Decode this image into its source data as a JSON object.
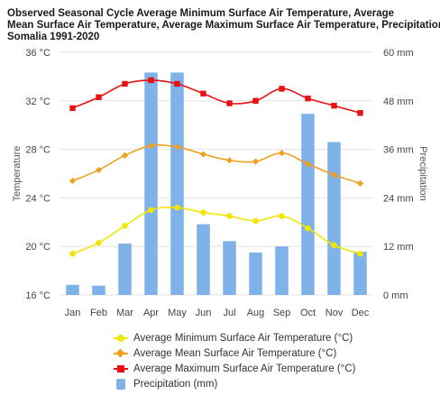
{
  "title_lines": [
    "Observed Seasonal Cycle Average Minimum Surface Air Temperature, Average",
    "Mean Surface Air Temperature, Average Maximum Surface Air Temperature, Precipitation",
    " Somalia 1991-2020"
  ],
  "chart_data": {
    "type": "bar+line",
    "categories": [
      "Jan",
      "Feb",
      "Mar",
      "Apr",
      "May",
      "Jun",
      "Jul",
      "Aug",
      "Sep",
      "Oct",
      "Nov",
      "Dec"
    ],
    "y_left": {
      "label": "Temperature",
      "ticks": [
        "16 °C",
        "20 °C",
        "24 °C",
        "28 °C",
        "32 °C",
        "36 °C"
      ],
      "range": [
        16,
        36
      ]
    },
    "y_right": {
      "label": "Precipitation",
      "ticks": [
        "0 mm",
        "12 mm",
        "24 mm",
        "36 mm",
        "48 mm",
        "60 mm"
      ],
      "range": [
        0,
        60
      ]
    },
    "grid": true,
    "legend_position": "bottom",
    "series": [
      {
        "name": "Average Minimum Surface Air Temperature (°C)",
        "kind": "line",
        "axis": "left",
        "color": "#f2e600",
        "values": [
          19.4,
          20.3,
          21.7,
          23.0,
          23.2,
          22.8,
          22.5,
          22.1,
          22.5,
          21.5,
          20.1,
          19.4
        ]
      },
      {
        "name": "Average Mean Surface Air Temperature (°C)",
        "kind": "line",
        "axis": "left",
        "color": "#f0a020",
        "values": [
          25.4,
          26.3,
          27.5,
          28.3,
          28.2,
          27.6,
          27.1,
          27.0,
          27.7,
          26.8,
          25.9,
          25.2
        ]
      },
      {
        "name": "Average Maximum Surface Air Temperature (°C)",
        "kind": "line",
        "axis": "left",
        "color": "#e81010",
        "values": [
          31.4,
          32.3,
          33.4,
          33.7,
          33.4,
          32.6,
          31.8,
          32.0,
          33.0,
          32.2,
          31.6,
          31.0
        ]
      },
      {
        "name": "Precipitation (mm)",
        "kind": "bar",
        "axis": "right",
        "color": "#7fb2e8",
        "values": [
          2.5,
          2.3,
          12.7,
          55.0,
          55.0,
          17.5,
          13.3,
          10.5,
          12.0,
          44.8,
          37.8,
          10.7
        ]
      }
    ]
  }
}
